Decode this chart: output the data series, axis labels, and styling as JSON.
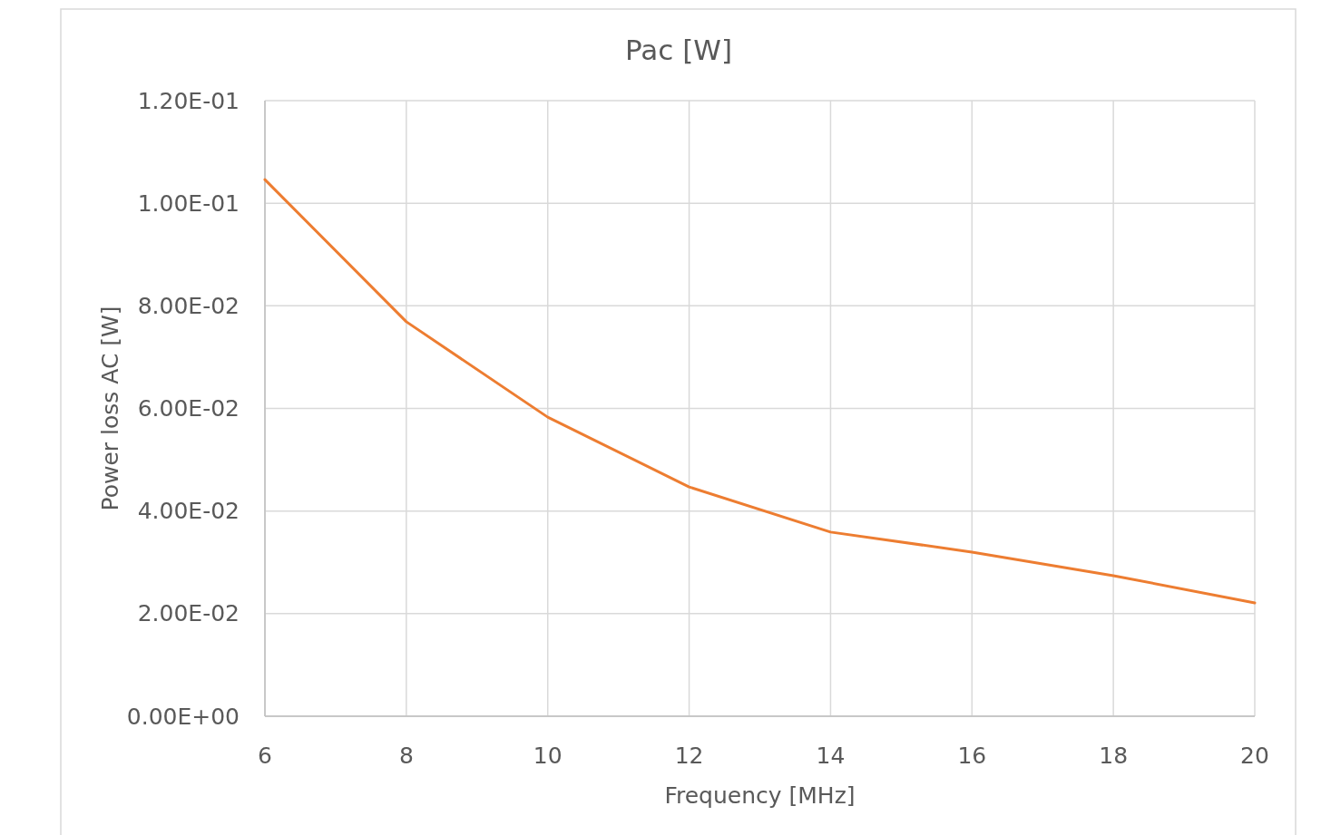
{
  "chart_data": {
    "type": "line",
    "title": "Pac [W]",
    "xlabel": "Frequency [MHz]",
    "ylabel": "Power loss AC [W]",
    "x": [
      6,
      8,
      10,
      12,
      14,
      16,
      18,
      20
    ],
    "series": [
      {
        "color": "#ed7d31",
        "values": [
          0.1046,
          0.0769,
          0.0583,
          0.0447,
          0.0359,
          0.032,
          0.0274,
          0.0221
        ]
      }
    ],
    "xlim": [
      6,
      20
    ],
    "xticks": [
      6,
      8,
      10,
      12,
      14,
      16,
      18,
      20
    ],
    "ylim": [
      0,
      0.12
    ],
    "yticks": [
      {
        "value": 0,
        "label": "0.00E+00"
      },
      {
        "value": 0.02,
        "label": "2.00E-02"
      },
      {
        "value": 0.04,
        "label": "4.00E-02"
      },
      {
        "value": 0.06,
        "label": "6.00E-02"
      },
      {
        "value": 0.08,
        "label": "8.00E-02"
      },
      {
        "value": 0.1,
        "label": "1.00E-01"
      },
      {
        "value": 0.12,
        "label": "1.20E-01"
      }
    ],
    "grid": true,
    "marker": "none",
    "line_style": "solid"
  }
}
